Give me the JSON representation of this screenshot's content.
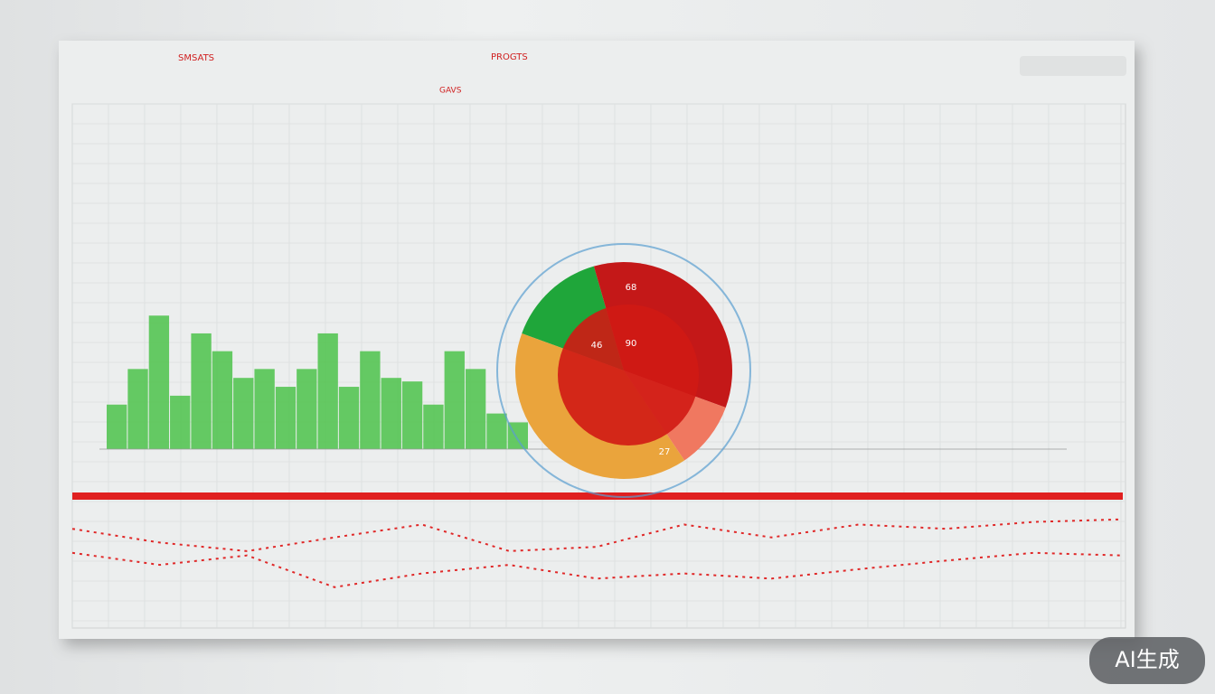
{
  "header": {
    "title_left": "SMSATS",
    "title_right": "PROGTS",
    "label": "GAVS"
  },
  "bars": {
    "color": "#4cc24a",
    "ylim": [
      0,
      100
    ],
    "values": [
      25,
      45,
      75,
      30,
      65,
      55,
      40,
      45,
      35,
      45,
      65,
      35,
      55,
      40,
      38,
      25,
      55,
      45,
      20,
      15
    ]
  },
  "pie": {
    "colors": [
      "#1fa63a",
      "#c41818",
      "#f07860",
      "#eaa43c"
    ],
    "values": [
      15,
      35,
      10,
      40
    ],
    "annotations": [
      "68",
      "90",
      "46",
      "27"
    ]
  },
  "lines": {
    "ylim": [
      0,
      100
    ],
    "series": [
      {
        "color": "#e02828",
        "values": [
          84,
          68,
          58,
          74,
          89,
          58,
          63,
          89,
          74,
          89,
          84,
          92,
          95
        ]
      },
      {
        "color": "#e02828",
        "values": [
          56,
          42,
          53,
          16,
          32,
          42,
          26,
          32,
          26,
          37,
          47,
          56,
          53
        ]
      }
    ]
  },
  "badge": "AI生成"
}
